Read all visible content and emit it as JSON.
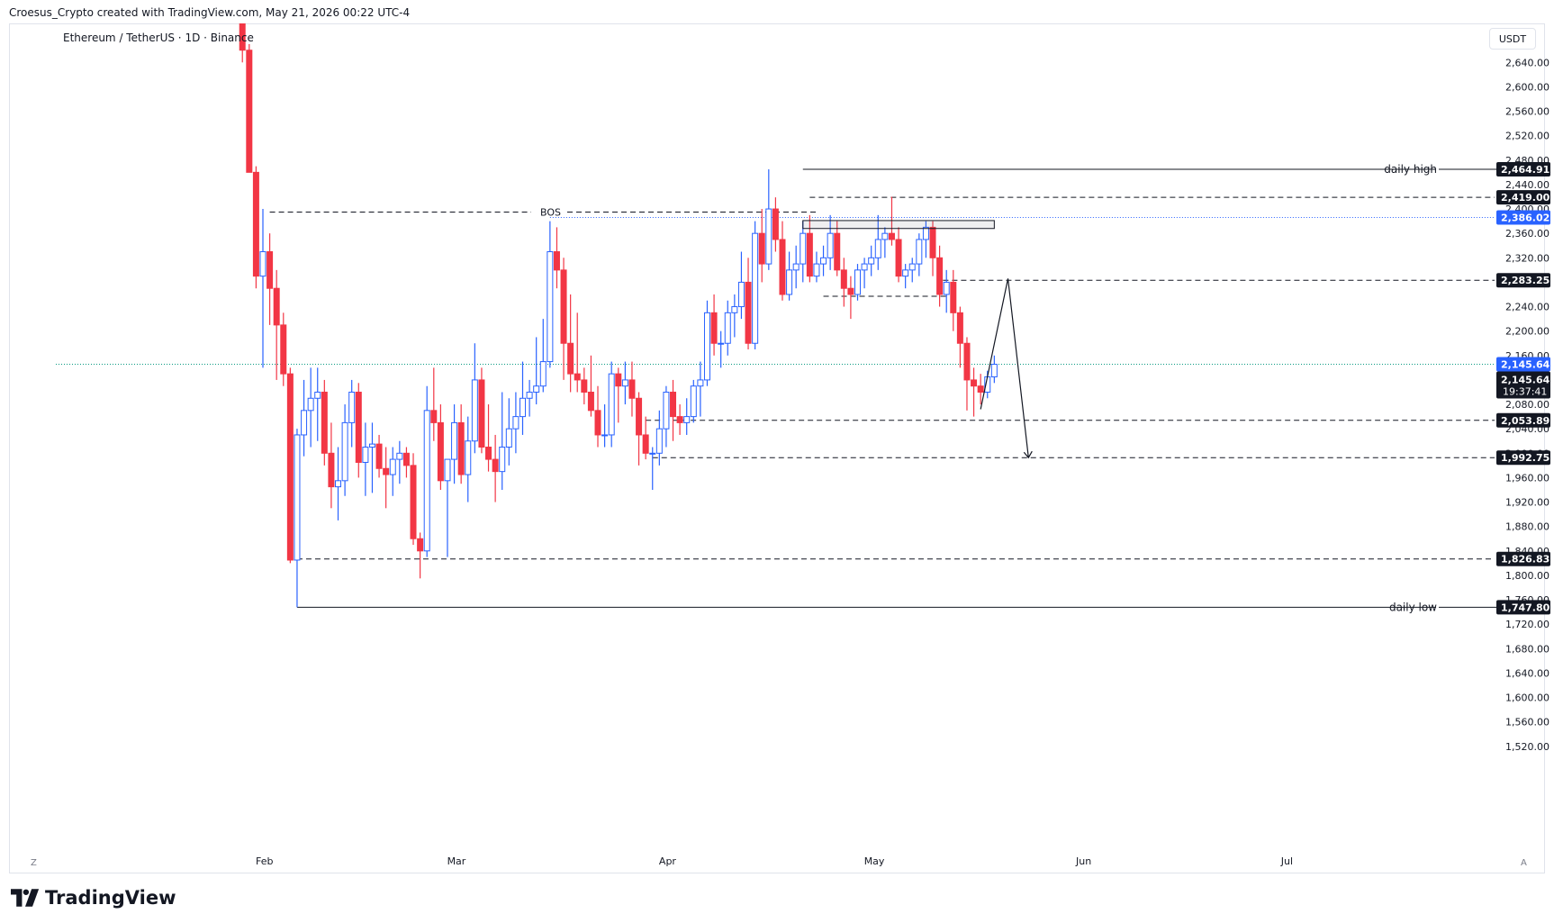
{
  "header": {
    "credit": "Croesus_Crypto created with TradingView.com, May 21, 2026 00:22 UTC-4"
  },
  "symbol_label": "Ethereum / TetherUS · 1D · Binance",
  "currency": "USDT",
  "brand": "TradingView",
  "corner_left": "Z",
  "corner_right": "A",
  "colors": {
    "up": "#2962ff",
    "down": "#f23645",
    "text": "#131722",
    "label_bg": "#131722",
    "blue_label_bg": "#2962ff",
    "teal": "#089981"
  },
  "chart_data": {
    "type": "candlestick",
    "symbol": "Ethereum / TetherUS",
    "interval": "1D",
    "exchange": "Binance",
    "ylim": [
      1500,
      2700
    ],
    "y_ticks": [
      "2,640.00",
      "2,600.00",
      "2,560.00",
      "2,520.00",
      "2,480.00",
      "2,440.00",
      "2,400.00",
      "2,360.00",
      "2,320.00",
      "2,280.00",
      "2,240.00",
      "2,200.00",
      "2,160.00",
      "2,120.00",
      "2,080.00",
      "2,040.00",
      "2,000.00",
      "1,960.00",
      "1,920.00",
      "1,880.00",
      "1,840.00",
      "1,800.00",
      "1,760.00",
      "1,720.00",
      "1,680.00",
      "1,640.00",
      "1,600.00",
      "1,560.00",
      "1,520.00"
    ],
    "x_ticks": [
      {
        "label": "Feb",
        "day": 33
      },
      {
        "label": "Mar",
        "day": 61
      },
      {
        "label": "Apr",
        "day": 92
      },
      {
        "label": "May",
        "day": 122
      },
      {
        "label": "Jun",
        "day": 153
      },
      {
        "label": "Jul",
        "day": 183
      }
    ],
    "first_day": 30,
    "candles": [
      [
        2740,
        2750,
        2640,
        2660
      ],
      [
        2660,
        2670,
        2460,
        2460
      ],
      [
        2460,
        2470,
        2270,
        2290
      ],
      [
        2290,
        2400,
        2140,
        2330
      ],
      [
        2330,
        2360,
        2210,
        2270
      ],
      [
        2270,
        2300,
        2120,
        2210
      ],
      [
        2210,
        2230,
        2110,
        2130
      ],
      [
        2130,
        2140,
        1820,
        1825
      ],
      [
        1825,
        2040,
        1747.8,
        2030
      ],
      [
        2030,
        2120,
        1995,
        2070
      ],
      [
        2070,
        2140,
        2010,
        2090
      ],
      [
        2090,
        2140,
        2020,
        2100
      ],
      [
        2100,
        2120,
        1980,
        2000
      ],
      [
        2000,
        2050,
        1910,
        1945
      ],
      [
        1945,
        2010,
        1890,
        1955
      ],
      [
        1955,
        2080,
        1930,
        2050
      ],
      [
        2050,
        2120,
        2010,
        2100
      ],
      [
        2100,
        2115,
        1960,
        1985
      ],
      [
        1985,
        2050,
        1930,
        2010
      ],
      [
        2010,
        2050,
        1935,
        2015
      ],
      [
        2015,
        2030,
        1960,
        1975
      ],
      [
        1975,
        2010,
        1910,
        1965
      ],
      [
        1965,
        2010,
        1930,
        1990
      ],
      [
        1990,
        2020,
        1950,
        2000
      ],
      [
        2000,
        2010,
        1960,
        1980
      ],
      [
        1980,
        2000,
        1850,
        1860
      ],
      [
        1860,
        1870,
        1795,
        1840
      ],
      [
        1840,
        2110,
        1830,
        2070
      ],
      [
        2070,
        2140,
        2020,
        2050
      ],
      [
        2050,
        2080,
        1940,
        1955
      ],
      [
        1955,
        1990,
        1830,
        1990
      ],
      [
        1990,
        2080,
        1950,
        2050
      ],
      [
        2050,
        2080,
        1950,
        1965
      ],
      [
        1965,
        2060,
        1920,
        2020
      ],
      [
        2020,
        2180,
        2000,
        2120
      ],
      [
        2120,
        2140,
        2000,
        2010
      ],
      [
        2010,
        2080,
        1970,
        1990
      ],
      [
        1990,
        2030,
        1920,
        1970
      ],
      [
        1970,
        2100,
        1940,
        2010
      ],
      [
        2010,
        2090,
        1980,
        2040
      ],
      [
        2040,
        2100,
        2000,
        2060
      ],
      [
        2060,
        2150,
        2030,
        2090
      ],
      [
        2090,
        2120,
        2060,
        2100
      ],
      [
        2100,
        2190,
        2080,
        2110
      ],
      [
        2110,
        2220,
        2100,
        2150
      ],
      [
        2150,
        2380,
        2140,
        2330
      ],
      [
        2330,
        2370,
        2270,
        2300
      ],
      [
        2300,
        2320,
        2120,
        2180
      ],
      [
        2180,
        2260,
        2100,
        2130
      ],
      [
        2130,
        2230,
        2100,
        2120
      ],
      [
        2120,
        2140,
        2080,
        2100
      ],
      [
        2100,
        2160,
        2060,
        2070
      ],
      [
        2070,
        2110,
        2010,
        2030
      ],
      [
        2030,
        2080,
        2010,
        2030
      ],
      [
        2030,
        2150,
        2010,
        2130
      ],
      [
        2130,
        2140,
        2050,
        2110
      ],
      [
        2110,
        2150,
        2080,
        2120
      ],
      [
        2120,
        2150,
        2060,
        2090
      ],
      [
        2090,
        2100,
        1980,
        2030
      ],
      [
        2030,
        2060,
        1990,
        2000
      ],
      [
        2000,
        2010,
        1940,
        2000
      ],
      [
        2000,
        2070,
        1980,
        2040
      ],
      [
        2040,
        2110,
        2010,
        2100
      ],
      [
        2100,
        2120,
        2020,
        2060
      ],
      [
        2060,
        2080,
        2030,
        2050
      ],
      [
        2050,
        2090,
        2030,
        2060
      ],
      [
        2060,
        2120,
        2050,
        2110
      ],
      [
        2110,
        2150,
        2060,
        2120
      ],
      [
        2120,
        2250,
        2110,
        2230
      ],
      [
        2230,
        2260,
        2160,
        2180
      ],
      [
        2180,
        2200,
        2140,
        2180
      ],
      [
        2180,
        2250,
        2160,
        2230
      ],
      [
        2230,
        2260,
        2190,
        2240
      ],
      [
        2240,
        2330,
        2220,
        2280
      ],
      [
        2280,
        2320,
        2170,
        2180
      ],
      [
        2180,
        2380,
        2170,
        2360
      ],
      [
        2360,
        2400,
        2280,
        2310
      ],
      [
        2310,
        2464.91,
        2300,
        2400
      ],
      [
        2400,
        2419,
        2330,
        2350
      ],
      [
        2350,
        2380,
        2250,
        2260
      ],
      [
        2260,
        2330,
        2250,
        2300
      ],
      [
        2300,
        2340,
        2270,
        2310
      ],
      [
        2310,
        2380,
        2280,
        2360
      ],
      [
        2360,
        2390,
        2280,
        2290
      ],
      [
        2290,
        2330,
        2280,
        2310
      ],
      [
        2310,
        2340,
        2290,
        2320
      ],
      [
        2320,
        2390,
        2300,
        2360
      ],
      [
        2360,
        2380,
        2290,
        2300
      ],
      [
        2300,
        2320,
        2240,
        2270
      ],
      [
        2270,
        2290,
        2220,
        2260
      ],
      [
        2260,
        2310,
        2250,
        2300
      ],
      [
        2300,
        2320,
        2270,
        2310
      ],
      [
        2310,
        2340,
        2290,
        2320
      ],
      [
        2320,
        2390,
        2300,
        2350
      ],
      [
        2350,
        2370,
        2320,
        2360
      ],
      [
        2360,
        2420,
        2340,
        2350
      ],
      [
        2350,
        2370,
        2280,
        2290
      ],
      [
        2290,
        2310,
        2270,
        2300
      ],
      [
        2300,
        2320,
        2280,
        2310
      ],
      [
        2310,
        2360,
        2290,
        2350
      ],
      [
        2350,
        2380,
        2320,
        2370
      ],
      [
        2370,
        2380,
        2290,
        2320
      ],
      [
        2320,
        2340,
        2240,
        2260
      ],
      [
        2260,
        2300,
        2230,
        2280
      ],
      [
        2280,
        2300,
        2200,
        2230
      ],
      [
        2230,
        2240,
        2140,
        2180
      ],
      [
        2180,
        2190,
        2070,
        2120
      ],
      [
        2120,
        2140,
        2060,
        2110
      ],
      [
        2110,
        2130,
        2080,
        2100
      ],
      [
        2100,
        2135,
        2090,
        2125
      ],
      [
        2125,
        2160,
        2115,
        2145.64
      ]
    ],
    "last_price": "2,145.64",
    "bar_countdown": "19:37:41",
    "levels": [
      {
        "price": 2464.91,
        "label": "2,464.91",
        "annotation": "daily high",
        "style": "solid",
        "bg": "dark"
      },
      {
        "price": 2419.0,
        "label": "2,419.00",
        "style": "dashed",
        "bg": "dark"
      },
      {
        "price": 2386.02,
        "label": "2,386.02",
        "style": "dotted-blue",
        "bg": "blue"
      },
      {
        "price": 2283.25,
        "label": "2,283.25",
        "style": "dashed",
        "bg": "dark"
      },
      {
        "price": 2145.64,
        "label": "2,145.64",
        "style": "dotted-teal",
        "bg": "blue"
      },
      {
        "price": 2053.89,
        "label": "2,053.89",
        "style": "dashed",
        "bg": "dark"
      },
      {
        "price": 1992.75,
        "label": "1,992.75",
        "style": "dashed",
        "bg": "dark"
      },
      {
        "price": 1826.83,
        "label": "1,826.83",
        "style": "dashed",
        "bg": "dark"
      },
      {
        "price": 1747.8,
        "label": "1,747.80",
        "annotation": "daily low",
        "style": "solid",
        "bg": "dark"
      }
    ],
    "annotations": {
      "bos_label": "BOS",
      "bos_price": 2395,
      "range_box": {
        "price_top": 2381,
        "price_bottom": 2368
      },
      "range_low": 2257,
      "projection": [
        {
          "day": 138,
          "price": 2072
        },
        {
          "day": 142,
          "price": 2286
        },
        {
          "day": 145,
          "price": 1992.75
        }
      ]
    }
  }
}
